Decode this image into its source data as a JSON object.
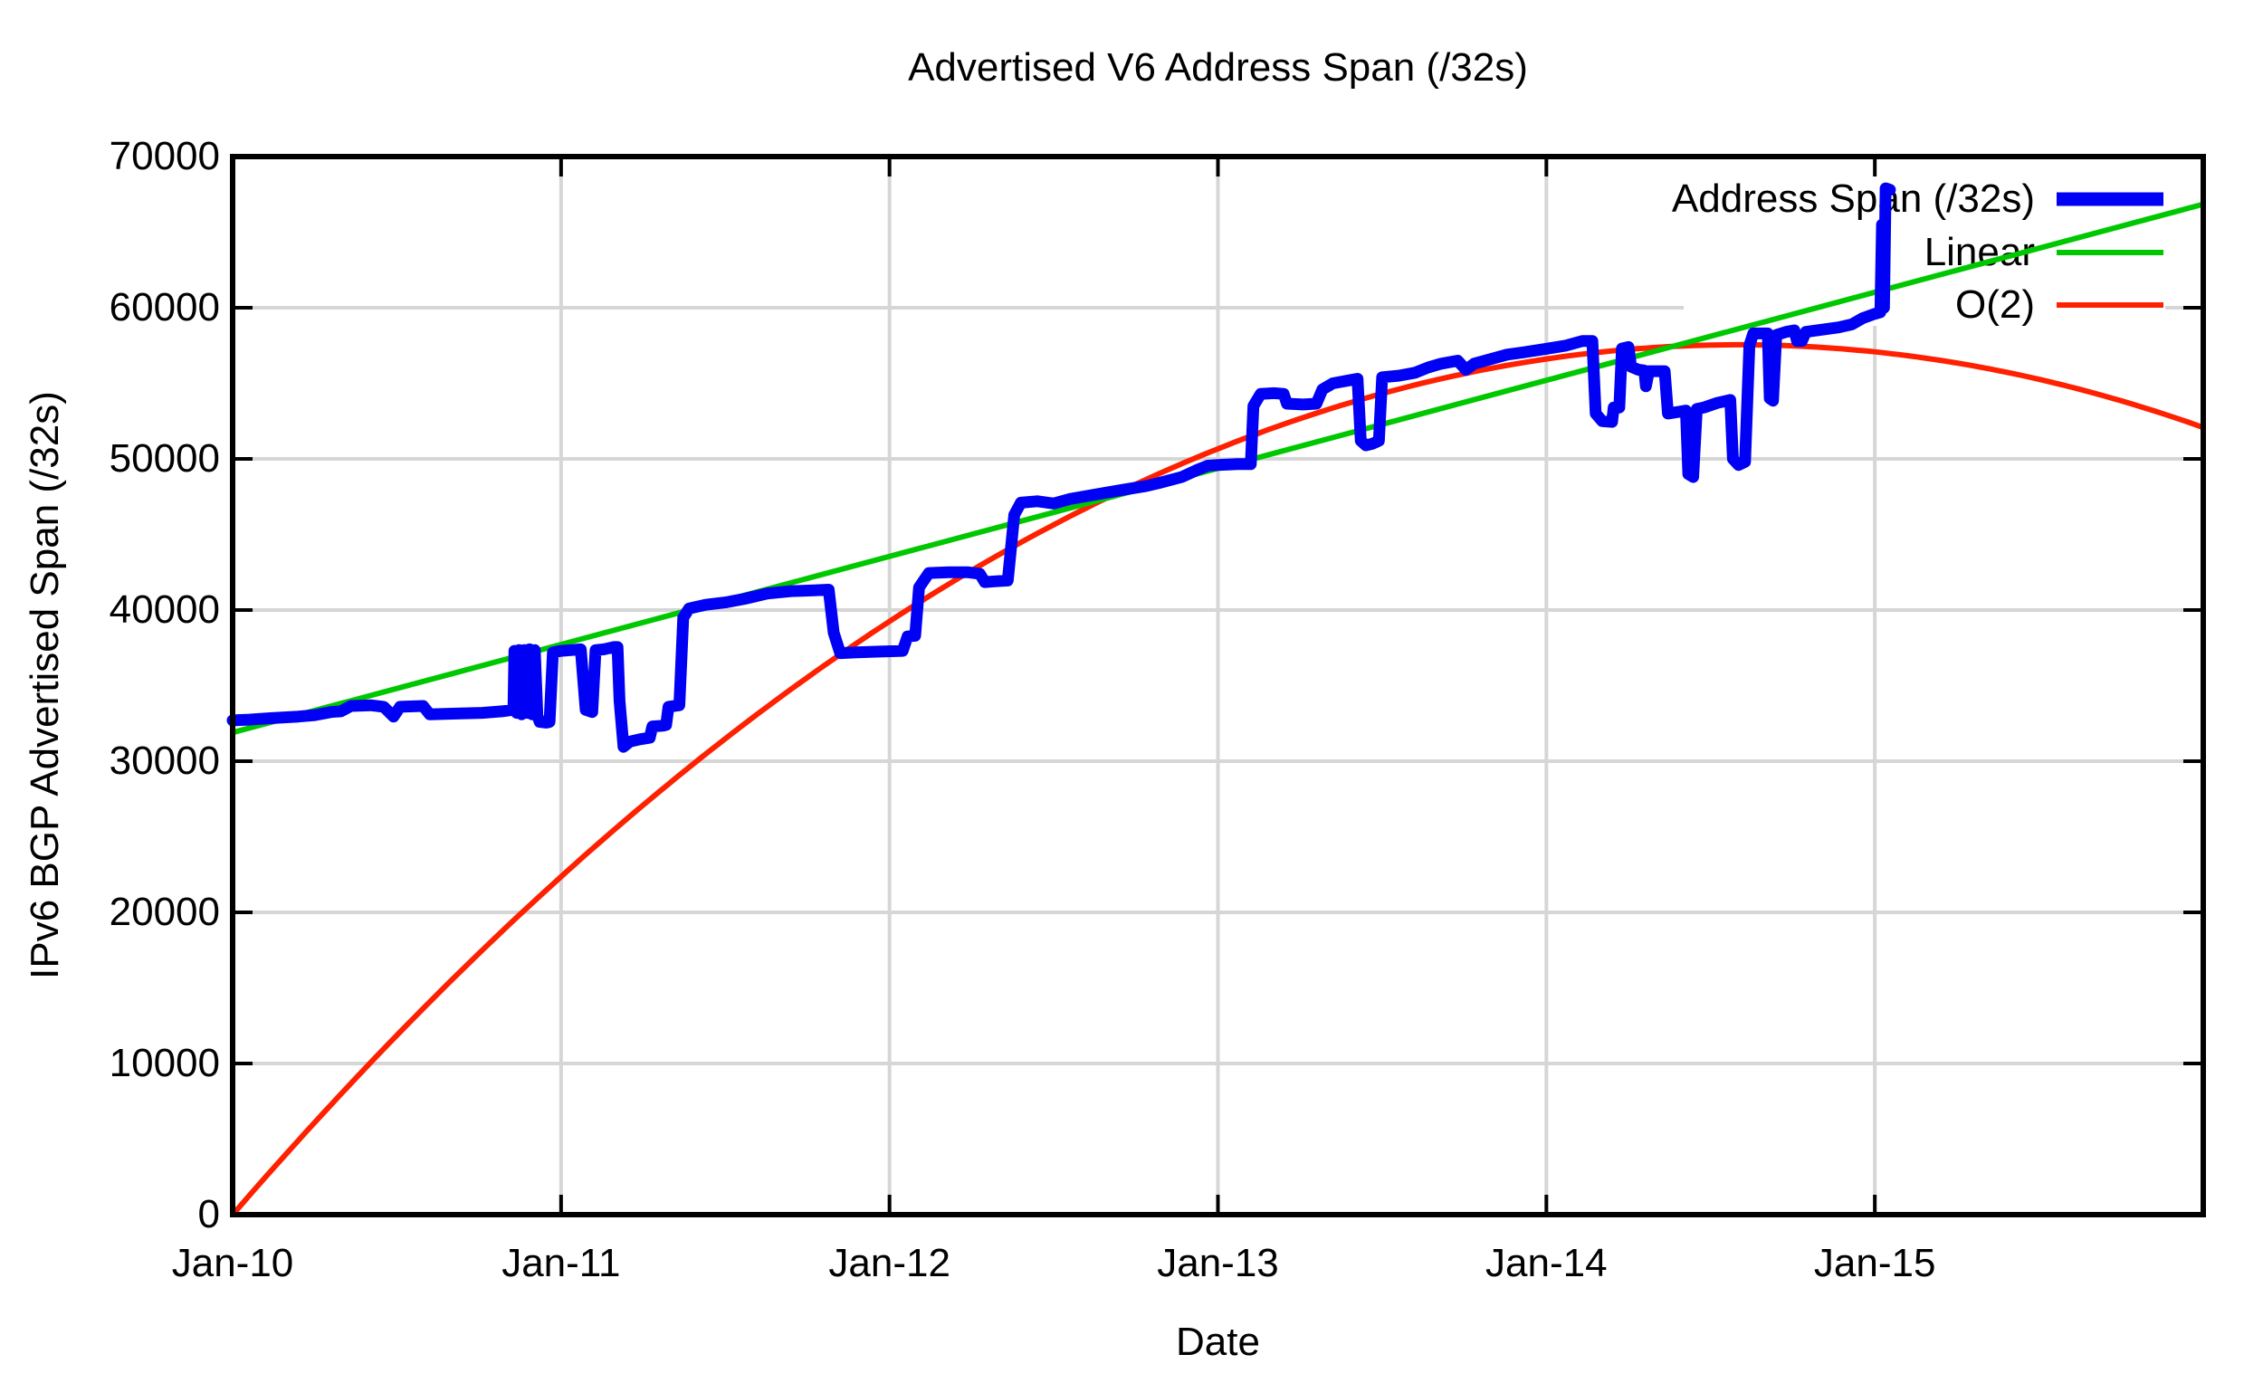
{
  "title": "Advertised V6 Address Span (/32s)",
  "axes": {
    "x_label": "Date",
    "y_label": "IPv6 BGP Advertised Span (/32s)"
  },
  "legend": {
    "items": [
      {
        "label": "Address Span (/32s)",
        "color": "#0000f5"
      },
      {
        "label": "Linear",
        "color": "#00c800"
      },
      {
        "label": "O(2)",
        "color": "#ff2000"
      }
    ]
  },
  "colors": {
    "grid": "#d6d6d6",
    "axis": "#000000",
    "background": "#ffffff"
  },
  "chart_data": {
    "type": "line",
    "title": "Advertised V6 Address Span (/32s)",
    "xlabel": "Date",
    "ylabel": "IPv6 BGP Advertised Span (/32s)",
    "x_range": [
      2010,
      2016
    ],
    "y_range": [
      0,
      70000
    ],
    "grid": true,
    "legend_position": "top-right",
    "x_ticks": [
      {
        "t": 2010,
        "label": "Jan-10"
      },
      {
        "t": 2011,
        "label": "Jan-11"
      },
      {
        "t": 2012,
        "label": "Jan-12"
      },
      {
        "t": 2013,
        "label": "Jan-13"
      },
      {
        "t": 2014,
        "label": "Jan-14"
      },
      {
        "t": 2015,
        "label": "Jan-15"
      }
    ],
    "y_ticks": [
      0,
      10000,
      20000,
      30000,
      40000,
      50000,
      60000,
      70000
    ],
    "series": [
      {
        "name": "Address Span (/32s)",
        "color": "#0000f5",
        "width": 13,
        "kind": "data",
        "points": [
          [
            2010.0,
            32700
          ],
          [
            2010.05,
            32750
          ],
          [
            2010.12,
            32850
          ],
          [
            2010.2,
            32950
          ],
          [
            2010.25,
            33050
          ],
          [
            2010.3,
            33250
          ],
          [
            2010.33,
            33300
          ],
          [
            2010.36,
            33650
          ],
          [
            2010.42,
            33700
          ],
          [
            2010.46,
            33600
          ],
          [
            2010.49,
            32950
          ],
          [
            2010.51,
            33600
          ],
          [
            2010.58,
            33650
          ],
          [
            2010.6,
            33100
          ],
          [
            2010.68,
            33150
          ],
          [
            2010.76,
            33200
          ],
          [
            2010.82,
            33300
          ],
          [
            2010.855,
            33400
          ],
          [
            2010.858,
            37300
          ],
          [
            2010.865,
            33200
          ],
          [
            2010.872,
            37350
          ],
          [
            2010.88,
            33100
          ],
          [
            2010.888,
            37350
          ],
          [
            2010.896,
            33200
          ],
          [
            2010.904,
            37400
          ],
          [
            2010.912,
            33100
          ],
          [
            2010.92,
            37350
          ],
          [
            2010.928,
            33000
          ],
          [
            2010.935,
            32600
          ],
          [
            2010.955,
            32550
          ],
          [
            2010.965,
            32600
          ],
          [
            2010.975,
            37200
          ],
          [
            2011.0,
            37300
          ],
          [
            2011.03,
            37350
          ],
          [
            2011.06,
            37400
          ],
          [
            2011.075,
            33400
          ],
          [
            2011.095,
            33250
          ],
          [
            2011.105,
            37350
          ],
          [
            2011.13,
            37400
          ],
          [
            2011.16,
            37550
          ],
          [
            2011.172,
            37550
          ],
          [
            2011.178,
            34000
          ],
          [
            2011.19,
            30950
          ],
          [
            2011.21,
            31300
          ],
          [
            2011.24,
            31450
          ],
          [
            2011.27,
            31550
          ],
          [
            2011.278,
            32300
          ],
          [
            2011.31,
            32350
          ],
          [
            2011.32,
            32400
          ],
          [
            2011.327,
            33600
          ],
          [
            2011.36,
            33700
          ],
          [
            2011.372,
            39500
          ],
          [
            2011.39,
            40100
          ],
          [
            2011.44,
            40350
          ],
          [
            2011.5,
            40500
          ],
          [
            2011.56,
            40750
          ],
          [
            2011.63,
            41100
          ],
          [
            2011.7,
            41250
          ],
          [
            2011.77,
            41300
          ],
          [
            2011.815,
            41350
          ],
          [
            2011.83,
            38500
          ],
          [
            2011.85,
            37150
          ],
          [
            2011.9,
            37200
          ],
          [
            2011.97,
            37250
          ],
          [
            2012.04,
            37300
          ],
          [
            2012.055,
            38250
          ],
          [
            2012.078,
            38300
          ],
          [
            2012.09,
            41500
          ],
          [
            2012.12,
            42450
          ],
          [
            2012.18,
            42500
          ],
          [
            2012.24,
            42500
          ],
          [
            2012.275,
            42400
          ],
          [
            2012.29,
            41850
          ],
          [
            2012.32,
            41900
          ],
          [
            2012.36,
            41950
          ],
          [
            2012.38,
            46300
          ],
          [
            2012.4,
            47100
          ],
          [
            2012.45,
            47200
          ],
          [
            2012.5,
            47050
          ],
          [
            2012.55,
            47350
          ],
          [
            2012.63,
            47650
          ],
          [
            2012.71,
            47950
          ],
          [
            2012.78,
            48200
          ],
          [
            2012.82,
            48400
          ],
          [
            2012.89,
            48800
          ],
          [
            2012.94,
            49300
          ],
          [
            2012.97,
            49550
          ],
          [
            2013.0,
            49600
          ],
          [
            2013.06,
            49650
          ],
          [
            2013.1,
            49650
          ],
          [
            2013.108,
            53500
          ],
          [
            2013.13,
            54300
          ],
          [
            2013.17,
            54350
          ],
          [
            2013.2,
            54300
          ],
          [
            2013.21,
            53650
          ],
          [
            2013.26,
            53600
          ],
          [
            2013.3,
            53650
          ],
          [
            2013.318,
            54600
          ],
          [
            2013.35,
            55000
          ],
          [
            2013.4,
            55200
          ],
          [
            2013.425,
            55300
          ],
          [
            2013.435,
            51200
          ],
          [
            2013.45,
            50900
          ],
          [
            2013.47,
            51000
          ],
          [
            2013.49,
            51200
          ],
          [
            2013.5,
            55400
          ],
          [
            2013.55,
            55500
          ],
          [
            2013.6,
            55700
          ],
          [
            2013.64,
            56050
          ],
          [
            2013.68,
            56300
          ],
          [
            2013.73,
            56500
          ],
          [
            2013.755,
            55900
          ],
          [
            2013.78,
            56300
          ],
          [
            2013.83,
            56600
          ],
          [
            2013.88,
            56900
          ],
          [
            2013.93,
            57050
          ],
          [
            2013.99,
            57250
          ],
          [
            2014.06,
            57500
          ],
          [
            2014.11,
            57800
          ],
          [
            2014.14,
            57800
          ],
          [
            2014.15,
            53000
          ],
          [
            2014.17,
            52500
          ],
          [
            2014.2,
            52450
          ],
          [
            2014.205,
            53400
          ],
          [
            2014.222,
            53400
          ],
          [
            2014.23,
            57300
          ],
          [
            2014.25,
            57400
          ],
          [
            2014.258,
            56100
          ],
          [
            2014.28,
            55900
          ],
          [
            2014.298,
            55850
          ],
          [
            2014.303,
            54800
          ],
          [
            2014.312,
            55800
          ],
          [
            2014.36,
            55800
          ],
          [
            2014.37,
            53000
          ],
          [
            2014.4,
            53100
          ],
          [
            2014.425,
            53200
          ],
          [
            2014.432,
            49000
          ],
          [
            2014.447,
            48800
          ],
          [
            2014.458,
            53300
          ],
          [
            2014.48,
            53400
          ],
          [
            2014.52,
            53700
          ],
          [
            2014.56,
            53900
          ],
          [
            2014.568,
            50000
          ],
          [
            2014.585,
            49600
          ],
          [
            2014.605,
            49800
          ],
          [
            2014.618,
            57500
          ],
          [
            2014.63,
            58300
          ],
          [
            2014.66,
            58300
          ],
          [
            2014.674,
            58300
          ],
          [
            2014.68,
            54000
          ],
          [
            2014.69,
            53850
          ],
          [
            2014.7,
            58200
          ],
          [
            2014.73,
            58400
          ],
          [
            2014.755,
            58500
          ],
          [
            2014.763,
            57800
          ],
          [
            2014.778,
            57800
          ],
          [
            2014.79,
            58400
          ],
          [
            2014.84,
            58550
          ],
          [
            2014.89,
            58700
          ],
          [
            2014.93,
            58900
          ],
          [
            2014.962,
            59300
          ],
          [
            2015.0,
            59600
          ],
          [
            2015.017,
            59700
          ],
          [
            2015.022,
            65500
          ],
          [
            2015.028,
            60000
          ],
          [
            2015.033,
            67900
          ],
          [
            2015.04,
            67850
          ],
          [
            2015.046,
            67800
          ]
        ]
      },
      {
        "name": "Linear",
        "color": "#00c800",
        "width": 6,
        "kind": "fit-linear",
        "points": [
          [
            2010.0,
            31900
          ],
          [
            2016.0,
            66850
          ]
        ]
      },
      {
        "name": "O(2)",
        "color": "#ff2000",
        "width": 6,
        "kind": "fit-quadratic",
        "quad": {
          "vertex_t": 2014.586,
          "vertex_v": 57550,
          "value_at_2010": 0
        }
      }
    ]
  }
}
